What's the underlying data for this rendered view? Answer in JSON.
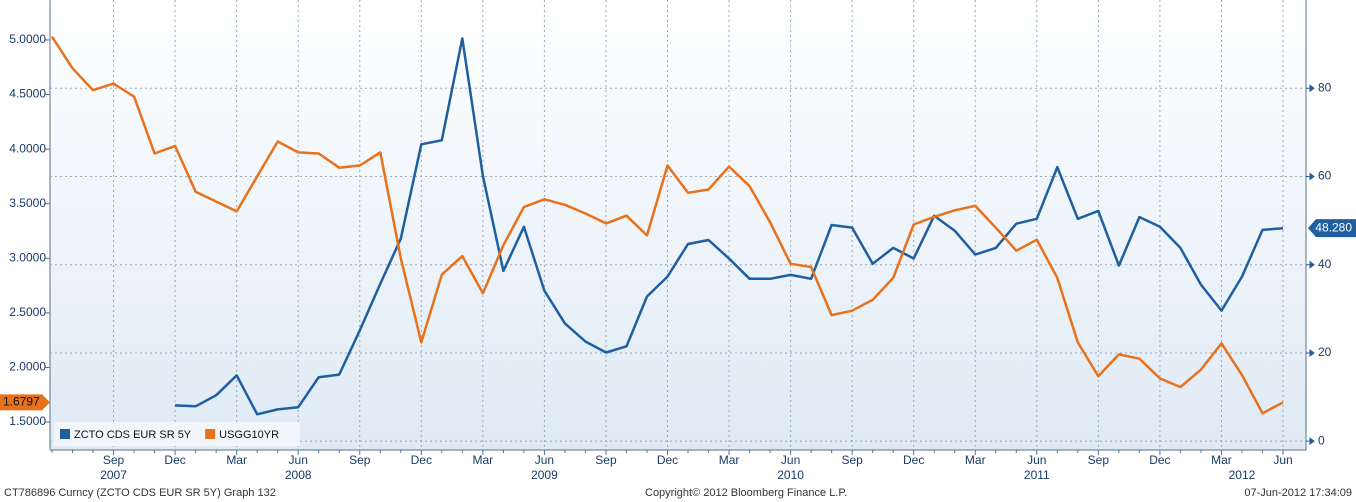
{
  "chart_data": {
    "type": "line",
    "categories": [
      null,
      null,
      null,
      "Sep",
      null,
      null,
      "Dec",
      null,
      null,
      "Mar",
      null,
      null,
      "Jun",
      null,
      null,
      "Sep",
      null,
      null,
      "Dec",
      null,
      null,
      "Mar",
      null,
      null,
      "Jun",
      null,
      null,
      "Sep",
      null,
      null,
      "Dec",
      null,
      null,
      "Mar",
      null,
      null,
      "Jun",
      null,
      null,
      "Sep",
      null,
      null,
      "Dec",
      null,
      null,
      "Mar",
      null,
      null,
      "Jun",
      null,
      null,
      "Sep",
      null,
      null,
      "Dec",
      null,
      null,
      "Mar",
      null,
      null,
      "Jun"
    ],
    "years": [
      null,
      null,
      null,
      "2007",
      null,
      null,
      null,
      null,
      null,
      null,
      null,
      null,
      "2008",
      null,
      null,
      null,
      null,
      null,
      null,
      null,
      null,
      null,
      null,
      null,
      "2009",
      null,
      null,
      null,
      null,
      null,
      null,
      null,
      null,
      null,
      null,
      null,
      "2010",
      null,
      null,
      null,
      null,
      null,
      null,
      null,
      null,
      null,
      null,
      null,
      "2011",
      null,
      null,
      null,
      null,
      null,
      null,
      null,
      null,
      null,
      "2012",
      null,
      null,
      null
    ],
    "series": [
      {
        "name": "ZCTO CDS EUR SR 5Y",
        "color": "#1f5fa0",
        "axis": "y2",
        "last_label": "48.280",
        "values": [
          null,
          null,
          null,
          null,
          null,
          null,
          8.1,
          7.9,
          10.4,
          14.9,
          6.1,
          7.2,
          7.7,
          14.5,
          15.1,
          25.1,
          35.7,
          45.9,
          67.3,
          68.2,
          91.3,
          60.1,
          38.6,
          48.6,
          34.1,
          26.7,
          22.6,
          20.1,
          21.5,
          32.8,
          37.3,
          44.7,
          45.6,
          41.4,
          36.8,
          36.8,
          37.7,
          36.8,
          49.0,
          48.4,
          40.2,
          43.8,
          41.4,
          51.1,
          47.7,
          42.3,
          43.8,
          49.3,
          50.4,
          62.1,
          50.4,
          52.2,
          39.8,
          50.8,
          48.6,
          43.8,
          35.5,
          29.6,
          37.3,
          47.9,
          48.28
        ]
      },
      {
        "name": "USGG10YR",
        "color": "#e8711c",
        "last_label": "1.6797",
        "values": [
          5.03,
          4.74,
          4.54,
          4.6,
          4.48,
          3.96,
          4.03,
          3.61,
          3.52,
          3.43,
          3.75,
          4.07,
          3.97,
          3.96,
          3.83,
          3.85,
          3.97,
          3.0,
          2.23,
          2.85,
          3.02,
          2.68,
          3.12,
          3.47,
          3.54,
          3.49,
          3.41,
          3.32,
          3.39,
          3.21,
          3.85,
          3.6,
          3.63,
          3.84,
          3.66,
          3.33,
          2.95,
          2.92,
          2.48,
          2.52,
          2.62,
          2.82,
          3.31,
          3.38,
          3.44,
          3.48,
          3.28,
          3.07,
          3.17,
          2.82,
          2.23,
          1.92,
          2.12,
          2.08,
          1.9,
          1.82,
          1.98,
          2.22,
          1.93,
          1.58,
          1.6797
        ]
      }
    ],
    "ylim": [
      1.244,
      5.366
    ],
    "yticks": [
      {
        "value": 1.5,
        "label": "1.5000"
      },
      {
        "value": 2,
        "label": "2.0000"
      },
      {
        "value": 2.5,
        "label": "2.5000"
      },
      {
        "value": 3,
        "label": "3.0000"
      },
      {
        "value": 3.5,
        "label": "3.5000"
      },
      {
        "value": 4,
        "label": "4.0000"
      },
      {
        "value": 4.5,
        "label": "4.5000"
      },
      {
        "value": 5,
        "label": "5.0000"
      }
    ],
    "y2lim": [
      -2,
      100
    ],
    "y2ticks": [
      0,
      20,
      40,
      60,
      80
    ],
    "grid": true,
    "legend": "lower left",
    "footer": {
      "left": "CT786896 Curncy (ZCTO CDS EUR SR 5Y) Graph 132",
      "center": "Copyright© 2012 Bloomberg Finance L.P.",
      "right": "07-Jun-2012 17:34:09"
    }
  }
}
